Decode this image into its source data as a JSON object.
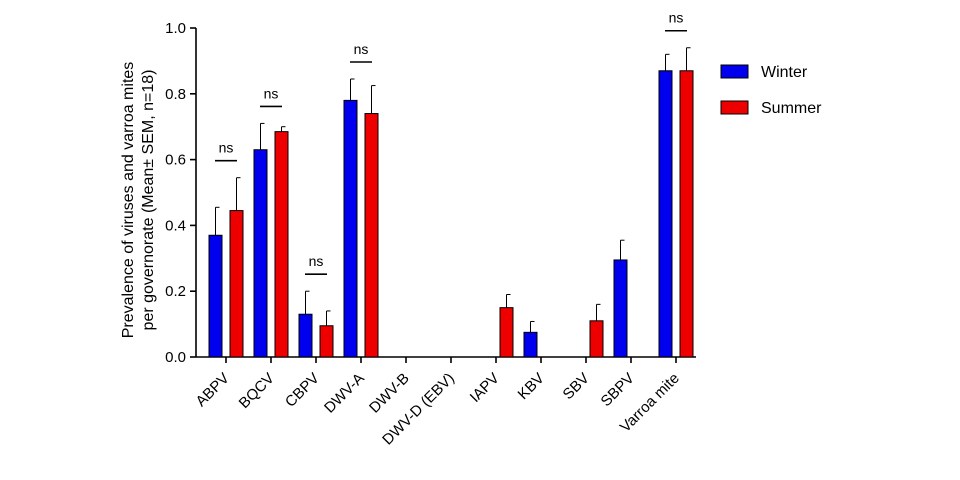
{
  "chart_data": {
    "type": "bar",
    "categories": [
      "ABPV",
      "BQCV",
      "CBPV",
      "DWV-A",
      "DWV-B",
      "DWV-D (EBV)",
      "IAPV",
      "KBV",
      "SBV",
      "SBPV",
      "Varroa mite"
    ],
    "series": [
      {
        "name": "Winter",
        "color": "#0000ee",
        "values": [
          0.37,
          0.63,
          0.13,
          0.78,
          0,
          0,
          0,
          0.075,
          0,
          0.295,
          0.87
        ],
        "errors": [
          0.085,
          0.08,
          0.07,
          0.065,
          0,
          0,
          0,
          0.033,
          0,
          0.06,
          0.05
        ]
      },
      {
        "name": "Summer",
        "color": "#ee0000",
        "values": [
          0.445,
          0.685,
          0.095,
          0.74,
          0,
          0,
          0.15,
          0,
          0.11,
          0,
          0.87
        ],
        "errors": [
          0.1,
          0.015,
          0.045,
          0.085,
          0,
          0,
          0.04,
          0,
          0.05,
          0,
          0.07
        ]
      }
    ],
    "significance": [
      {
        "category_index": 0,
        "label": "ns"
      },
      {
        "category_index": 1,
        "label": "ns"
      },
      {
        "category_index": 2,
        "label": "ns"
      },
      {
        "category_index": 3,
        "label": "ns"
      },
      {
        "category_index": 10,
        "label": "ns"
      }
    ],
    "ylabel_line1": "Prevalence of viruses and varroa mites",
    "ylabel_line2": "per governorate (Mean± SEM, n=18)",
    "ylim": [
      0,
      1.0
    ],
    "yticks": [
      "0.0",
      "0.2",
      "0.4",
      "0.6",
      "0.8",
      "1.0"
    ],
    "legend_position": "top-right"
  }
}
